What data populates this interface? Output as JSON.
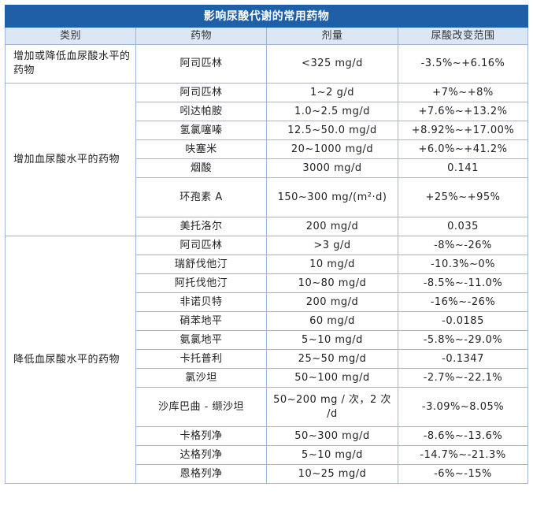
{
  "table": {
    "title": "影响尿酸代谢的常用药物",
    "headers": [
      "类别",
      "药物",
      "剂量",
      "尿酸改变范围"
    ],
    "groups": [
      {
        "category": "增加或降低血尿酸水平的药物",
        "rows": [
          {
            "drug": "阿司匹林",
            "dose": "<325 mg/d",
            "change": "-3.5%~+6.16%"
          }
        ]
      },
      {
        "category": "增加血尿酸水平的药物",
        "rows": [
          {
            "drug": "阿司匹林",
            "dose": "1~2 g/d",
            "change": "+7%~+8%"
          },
          {
            "drug": "吲达帕胺",
            "dose": "1.0~2.5 mg/d",
            "change": "+7.6%~+13.2%"
          },
          {
            "drug": "氢氯噻嗪",
            "dose": "12.5~50.0 mg/d",
            "change": "+8.92%~+17.00%"
          },
          {
            "drug": "呋塞米",
            "dose": "20~1000 mg/d",
            "change": "+6.0%~+41.2%"
          },
          {
            "drug": "烟酸",
            "dose": "3000 mg/d",
            "change": "0.141"
          },
          {
            "drug": "环孢素 A",
            "dose": "150~300 mg/(m²·d)",
            "change": "+25%~+95%"
          },
          {
            "drug": "美托洛尔",
            "dose": "200 mg/d",
            "change": "0.035"
          }
        ]
      },
      {
        "category": "降低血尿酸水平的药物",
        "rows": [
          {
            "drug": "阿司匹林",
            "dose": ">3 g/d",
            "change": "-8%~-26%"
          },
          {
            "drug": "瑞舒伐他汀",
            "dose": "10 mg/d",
            "change": "-10.3%~0%"
          },
          {
            "drug": "阿托伐他汀",
            "dose": "10~80 mg/d",
            "change": "-8.5%~-11.0%"
          },
          {
            "drug": "非诺贝特",
            "dose": "200 mg/d",
            "change": "-16%~-26%"
          },
          {
            "drug": "硝苯地平",
            "dose": "60 mg/d",
            "change": "-0.0185"
          },
          {
            "drug": "氨氯地平",
            "dose": "5~10 mg/d",
            "change": "-5.8%~-29.0%"
          },
          {
            "drug": "卡托普利",
            "dose": "25~50 mg/d",
            "change": "-0.1347"
          },
          {
            "drug": "氯沙坦",
            "dose": "50~100 mg/d",
            "change": "-2.7%~-22.1%"
          },
          {
            "drug": "沙库巴曲 - 缬沙坦",
            "dose": "50~200 mg / 次，2 次 /d",
            "change": "-3.09%~8.05%"
          },
          {
            "drug": "卡格列净",
            "dose": "50~300 mg/d",
            "change": "-8.6%~-13.6%"
          },
          {
            "drug": "达格列净",
            "dose": "5~10 mg/d",
            "change": "-14.7%~-21.3%"
          },
          {
            "drug": "恩格列净",
            "dose": "10~25 mg/d",
            "change": "-6%~-15%"
          }
        ]
      }
    ]
  }
}
